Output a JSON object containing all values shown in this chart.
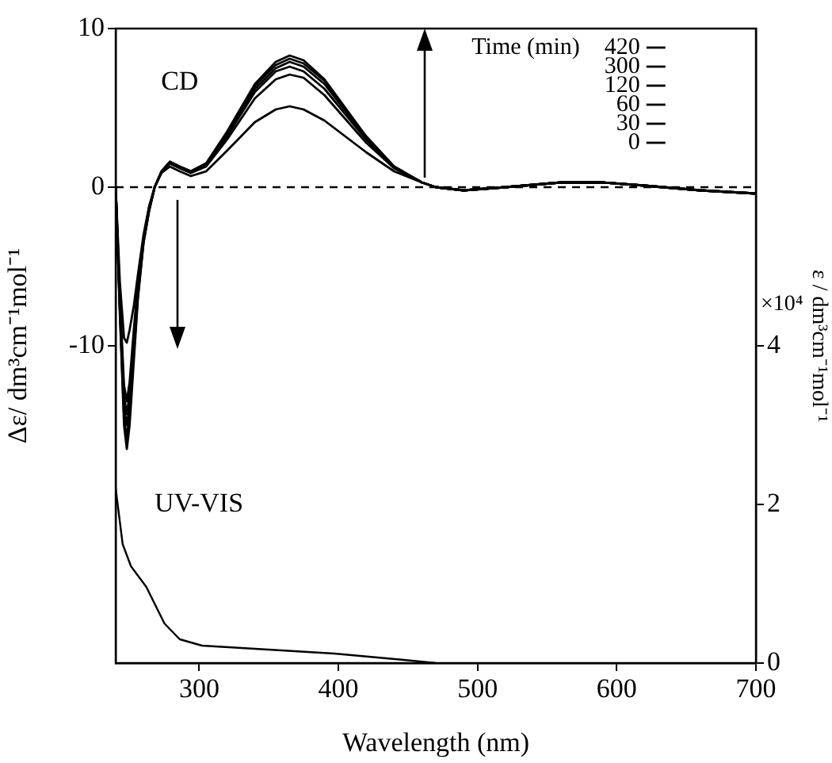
{
  "chart_data": {
    "type": "line",
    "xlabel": "Wavelength (nm)",
    "ylabel": "Δε/ dm³cm⁻¹mol⁻¹",
    "y2label": "ε / dm³cm⁻¹mol⁻¹",
    "legend_title": "Time (min)",
    "x": [
      240,
      243,
      246,
      248,
      250,
      253,
      256,
      260,
      264,
      268,
      273,
      279,
      286,
      294,
      305,
      320,
      340,
      355,
      365,
      375,
      390,
      405,
      420,
      440,
      460,
      470,
      490,
      520,
      560,
      590,
      620,
      660,
      700
    ],
    "series": [
      {
        "name": "420",
        "color": "#000000",
        "values": [
          0,
          -8,
          -15,
          -16.5,
          -15,
          -11,
          -7,
          -3.5,
          -1.5,
          0,
          1,
          1.6,
          1.3,
          1,
          1.5,
          3.5,
          6.5,
          7.9,
          8.3,
          8,
          6.8,
          5,
          3.2,
          1.3,
          0.3,
          0,
          -0.2,
          0,
          0.3,
          0.3,
          0.1,
          -0.2,
          -0.4
        ]
      },
      {
        "name": "300",
        "color": "#000000",
        "values": [
          0,
          -7.8,
          -14.5,
          -15.8,
          -14.3,
          -10.5,
          -6.8,
          -3.5,
          -1.5,
          0,
          1,
          1.6,
          1.3,
          1,
          1.5,
          3.4,
          6.4,
          7.7,
          8.1,
          7.8,
          6.7,
          4.9,
          3.2,
          1.3,
          0.3,
          0,
          -0.2,
          0,
          0.3,
          0.3,
          0.1,
          -0.2,
          -0.4
        ]
      },
      {
        "name": "120",
        "color": "#000000",
        "values": [
          0,
          -7.6,
          -13.9,
          -15,
          -13.7,
          -10,
          -6.6,
          -3.4,
          -1.4,
          0,
          1,
          1.6,
          1.3,
          1,
          1.4,
          3.3,
          6.2,
          7.5,
          7.9,
          7.6,
          6.5,
          4.8,
          3.1,
          1.3,
          0.3,
          0,
          -0.2,
          0,
          0.3,
          0.3,
          0.1,
          -0.2,
          -0.4
        ]
      },
      {
        "name": "60",
        "color": "#000000",
        "values": [
          0,
          -7.3,
          -13.2,
          -14.3,
          -13,
          -9.6,
          -6.3,
          -3.3,
          -1.4,
          0,
          1,
          1.5,
          1.2,
          0.9,
          1.4,
          3.2,
          6,
          7.3,
          7.6,
          7.3,
          6.2,
          4.6,
          3,
          1.2,
          0.3,
          0,
          -0.2,
          0,
          0.3,
          0.3,
          0.1,
          -0.2,
          -0.4
        ]
      },
      {
        "name": "30",
        "color": "#000000",
        "values": [
          0,
          -7,
          -12.5,
          -13.5,
          -12.3,
          -9,
          -6,
          -3.2,
          -1.3,
          0,
          1,
          1.5,
          1.2,
          0.9,
          1.3,
          3,
          5.6,
          6.8,
          7.1,
          6.9,
          5.8,
          4.3,
          2.8,
          1.2,
          0.3,
          0,
          -0.2,
          0,
          0.3,
          0.3,
          0.1,
          -0.2,
          -0.4
        ]
      },
      {
        "name": "0",
        "color": "#000000",
        "values": [
          0,
          -6,
          -9.5,
          -9.8,
          -9,
          -7.5,
          -5.5,
          -3,
          -1.2,
          0,
          0.9,
          1.3,
          1,
          0.7,
          1,
          2.3,
          4.1,
          4.9,
          5.1,
          4.9,
          4.2,
          3.2,
          2.2,
          1,
          0.3,
          0,
          -0.2,
          0,
          0.3,
          0.3,
          0.1,
          -0.2,
          -0.4
        ]
      },
      {
        "color": "#000000",
        "axis": "y2",
        "x": [
          240,
          245,
          251,
          262,
          275,
          286,
          302,
          340,
          397,
          447,
          470
        ],
        "values": [
          2.2,
          1.5,
          1.22,
          0.96,
          0.5,
          0.3,
          0.22,
          0.18,
          0.12,
          0.04,
          0
        ]
      }
    ],
    "xlim": [
      240,
      700
    ],
    "xticks": [
      300,
      400,
      500,
      600,
      700
    ],
    "ylim": [
      -30,
      10
    ],
    "yticks": [
      10,
      0,
      -10
    ],
    "y2lim": [
      0,
      8
    ],
    "y2ticks": [
      0,
      2,
      4
    ],
    "ref_lines": [
      {
        "axis": "y",
        "value": 0,
        "line_style": "dashed"
      }
    ],
    "annotations": [
      "CD",
      "UV-VIS",
      "×10⁴"
    ],
    "legend": "top right",
    "marker": "none",
    "line_style": "solid",
    "grid": false
  }
}
